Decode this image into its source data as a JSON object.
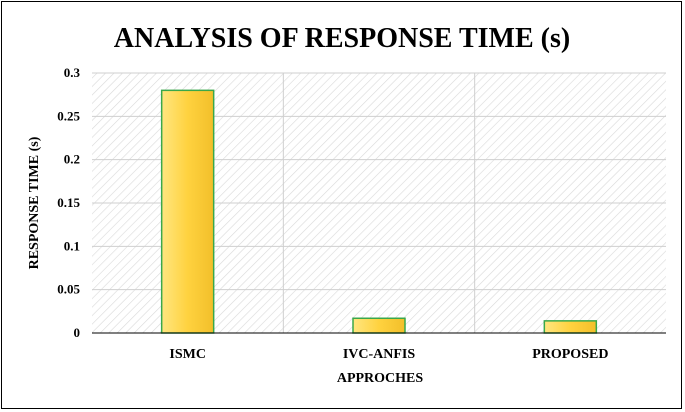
{
  "chart_data": {
    "type": "bar",
    "title": "ANALYSIS  OF RESPONSE TIME  (s)",
    "xlabel": "APPROCHES",
    "ylabel": "RESPONSE TIME (s)",
    "categories": [
      "ISMC",
      "IVC-ANFIS",
      "PROPOSED"
    ],
    "values": [
      0.28,
      0.017,
      0.014
    ],
    "ylim": [
      0,
      0.3
    ],
    "yticks": [
      "0",
      "0.05",
      "0.1",
      "0.15",
      "0.2",
      "0.25",
      "0.3"
    ],
    "grid": true,
    "legend": "none",
    "colors": {
      "bar_fill": "#ffd84a",
      "bar_edge": "#3aa84a",
      "plot_background": "#ffffff",
      "grid": "#cfcfcf"
    }
  }
}
